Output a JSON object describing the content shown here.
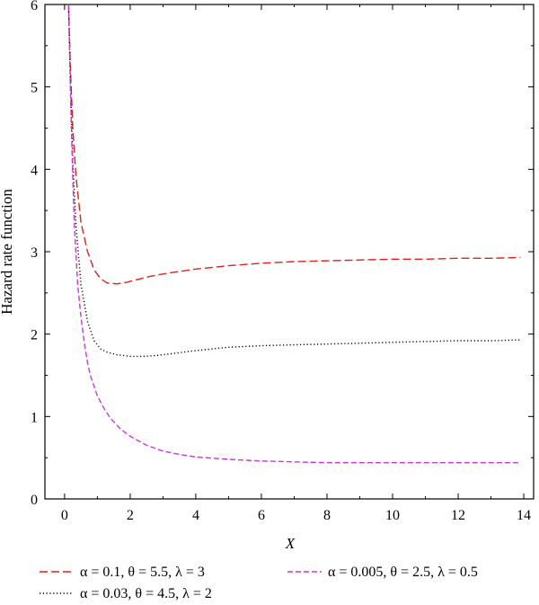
{
  "chart_data": {
    "type": "line",
    "title": "",
    "xlabel": "X",
    "ylabel": "Hazard rate function",
    "xlim": [
      -0.6,
      14.3
    ],
    "ylim": [
      0,
      6
    ],
    "xticks": [
      0,
      2,
      4,
      6,
      8,
      10,
      12,
      14
    ],
    "yticks": [
      0,
      1,
      2,
      3,
      4,
      5,
      6
    ],
    "grid": false,
    "legend_position": "bottom",
    "series": [
      {
        "name": "α = 0.1, θ = 5.5, λ = 3",
        "color": "#e0201b",
        "style": "dashed",
        "x": [
          0.12,
          0.18,
          0.25,
          0.35,
          0.5,
          0.7,
          0.9,
          1.1,
          1.3,
          1.6,
          1.9,
          2.2,
          2.6,
          3.0,
          3.5,
          4.0,
          5.0,
          6.0,
          7.0,
          8.0,
          9.0,
          10.0,
          11.0,
          12.0,
          13.0,
          13.9
        ],
        "y": [
          6.0,
          5.2,
          4.5,
          3.9,
          3.35,
          3.0,
          2.78,
          2.67,
          2.62,
          2.61,
          2.63,
          2.66,
          2.7,
          2.73,
          2.76,
          2.79,
          2.83,
          2.86,
          2.88,
          2.89,
          2.9,
          2.91,
          2.91,
          2.92,
          2.92,
          2.93
        ]
      },
      {
        "name": "α = 0.03, θ = 4.5, λ = 2",
        "color": "#000000",
        "style": "dotted",
        "x": [
          0.12,
          0.18,
          0.25,
          0.35,
          0.5,
          0.7,
          0.9,
          1.1,
          1.3,
          1.6,
          2.0,
          2.4,
          2.8,
          3.2,
          4.0,
          5.0,
          6.0,
          7.0,
          8.0,
          9.0,
          10.0,
          11.0,
          12.0,
          13.0,
          13.9
        ],
        "y": [
          6.0,
          5.0,
          4.1,
          3.3,
          2.6,
          2.15,
          1.92,
          1.82,
          1.78,
          1.75,
          1.73,
          1.73,
          1.74,
          1.76,
          1.8,
          1.84,
          1.86,
          1.87,
          1.88,
          1.89,
          1.9,
          1.91,
          1.92,
          1.92,
          1.93
        ]
      },
      {
        "name": "α = 0.005, θ = 2.5, λ = 0.5",
        "color": "#c838d8",
        "style": "dashed",
        "x": [
          0.12,
          0.16,
          0.2,
          0.25,
          0.3,
          0.4,
          0.5,
          0.6,
          0.7,
          0.8,
          1.0,
          1.2,
          1.4,
          1.7,
          2.0,
          2.5,
          3.0,
          3.5,
          4.0,
          5.0,
          6.0,
          7.0,
          8.0,
          9.0,
          10.0,
          11.0,
          12.0,
          13.0,
          13.9
        ],
        "y": [
          6.0,
          5.3,
          4.6,
          3.9,
          3.3,
          2.6,
          2.2,
          1.9,
          1.65,
          1.48,
          1.25,
          1.1,
          0.98,
          0.85,
          0.76,
          0.65,
          0.58,
          0.54,
          0.51,
          0.48,
          0.46,
          0.45,
          0.44,
          0.44,
          0.44,
          0.44,
          0.44,
          0.44,
          0.44
        ]
      }
    ]
  }
}
